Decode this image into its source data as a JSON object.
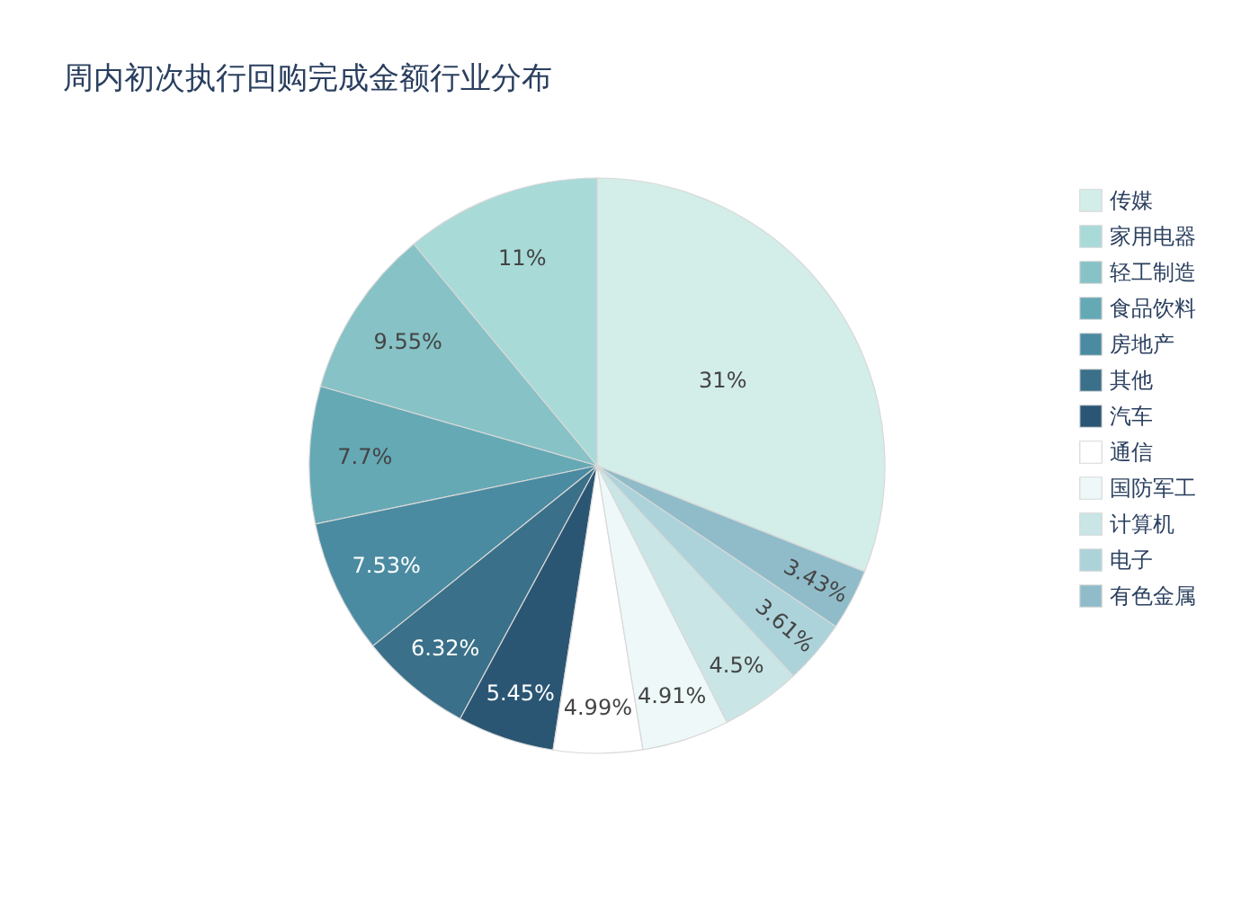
{
  "chart_data": {
    "type": "pie",
    "title": "周内初次执行回购完成金额行业分布",
    "categories": [
      "传媒",
      "家用电器",
      "轻工制造",
      "食品饮料",
      "房地产",
      "其他",
      "汽车",
      "通信",
      "国防军工",
      "计算机",
      "电子",
      "有色金属"
    ],
    "values": [
      31,
      11,
      9.55,
      7.7,
      7.53,
      6.32,
      5.45,
      4.99,
      4.91,
      4.5,
      3.61,
      3.43
    ],
    "value_labels": [
      "31%",
      "11%",
      "9.55%",
      "7.7%",
      "7.53%",
      "6.32%",
      "5.45%",
      "4.99%",
      "4.91%",
      "4.5%",
      "3.61%",
      "3.43%"
    ],
    "colors": [
      "#d3ede9",
      "#a8dad8",
      "#86c2c6",
      "#65a9b5",
      "#4a8ba1",
      "#3a7089",
      "#2a5674",
      "#ffffff",
      "#eef8f8",
      "#c9e5e6",
      "#acd3da",
      "#90bcc9"
    ],
    "legend": "top right"
  }
}
